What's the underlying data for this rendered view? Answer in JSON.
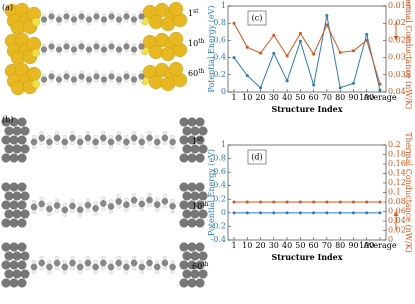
{
  "panel_a": {
    "label": "(a)",
    "frames": [
      {
        "base": "1",
        "sup": "st"
      },
      {
        "base": "10",
        "sup": "th"
      },
      {
        "base": "60",
        "sup": "th"
      }
    ]
  },
  "panel_b": {
    "label": "(b)",
    "frames": [
      {
        "base": "1",
        "sup": "st"
      },
      {
        "base": "10",
        "sup": "th"
      },
      {
        "base": "60",
        "sup": "th"
      }
    ]
  },
  "chart_data": [
    {
      "type": "line",
      "label": "(c)",
      "xlabel": "Structure Index",
      "ylabel": "Potential Energy (eV)",
      "y2label": "Thermal Conductance (nW/K)",
      "categories": [
        "1",
        "10",
        "20",
        "30",
        "40",
        "50",
        "60",
        "70",
        "80",
        "90",
        "100",
        "Average"
      ],
      "ylim": [
        0,
        1
      ],
      "yticks": [
        0,
        0.2,
        0.4,
        0.6,
        0.8,
        1
      ],
      "y2lim": [
        0.04,
        0.015
      ],
      "y2ticks": [
        0.015,
        0.02,
        0.025,
        0.03,
        0.035,
        0.04
      ],
      "series": [
        {
          "color": "#2b7bba",
          "values": [
            0.4,
            0.19,
            0.05,
            0.45,
            0.13,
            0.59,
            0.08,
            0.89,
            0.05,
            0.1,
            0.67,
            0.02
          ]
        },
        {
          "color": "#d95319",
          "axis": "y2",
          "values": [
            0.02,
            0.027,
            0.0287,
            0.0235,
            0.0295,
            0.023,
            0.029,
            0.0205,
            0.0285,
            0.028,
            0.025,
            0.0377
          ]
        }
      ]
    },
    {
      "type": "line",
      "label": "(d)",
      "xlabel": "Structure Index",
      "ylabel": "Potential Energy (eV)",
      "y2label": "Thermal Conductance (nW/K)",
      "categories": [
        "1",
        "10",
        "20",
        "30",
        "40",
        "50",
        "60",
        "70",
        "80",
        "90",
        "100",
        "Average"
      ],
      "ylim": [
        -0.4,
        1
      ],
      "yticks": [
        -0.4,
        -0.2,
        0,
        0.2,
        0.4,
        0.6,
        0.8,
        1
      ],
      "y2lim": [
        0,
        0.2
      ],
      "y2ticks": [
        0,
        0.02,
        0.04,
        0.06,
        0.08,
        0.1,
        0.12,
        0.14,
        0.16,
        0.18,
        0.2
      ],
      "series": [
        {
          "color": "#2b7bba",
          "values": [
            0,
            0,
            0,
            0,
            0,
            0,
            0,
            0,
            0,
            0,
            0,
            0
          ]
        },
        {
          "color": "#d95319",
          "axis": "y2",
          "values": [
            0.08,
            0.08,
            0.08,
            0.08,
            0.08,
            0.08,
            0.08,
            0.08,
            0.08,
            0.08,
            0.08,
            0.08
          ]
        }
      ]
    }
  ]
}
